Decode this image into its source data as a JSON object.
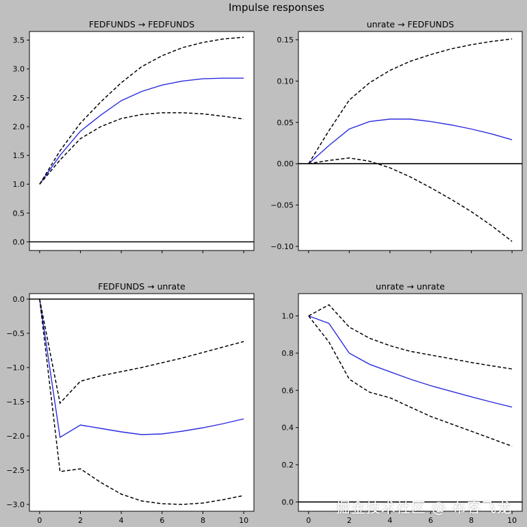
{
  "figure": {
    "title": "Impulse responses",
    "watermark": "掘金技术社区 @ 布客飞龙"
  },
  "colors": {
    "background": "#bfbfbf",
    "axes_face": "#ffffff",
    "irf": "#2b2bde",
    "band": "#000000",
    "zero_line": "#000000"
  },
  "chart_data": [
    {
      "type": "line",
      "title": "FEDFUNDS → FEDFUNDS",
      "x": [
        0,
        1,
        2,
        3,
        4,
        5,
        6,
        7,
        8,
        9,
        10
      ],
      "x_ticks": [],
      "ylim": [
        -0.15,
        3.65
      ],
      "y_ticks": [
        0.0,
        0.5,
        1.0,
        1.5,
        2.0,
        2.5,
        3.0,
        3.5
      ],
      "y_tick_labels": [
        "0.0",
        "0.5",
        "1.0",
        "1.5",
        "2.0",
        "2.5",
        "3.0",
        "3.5"
      ],
      "series": [
        {
          "name": "irf",
          "style": "solid",
          "values": [
            1.0,
            1.5,
            1.92,
            2.2,
            2.45,
            2.61,
            2.72,
            2.79,
            2.83,
            2.84,
            2.84
          ]
        },
        {
          "name": "upper",
          "style": "dashed",
          "values": [
            1.0,
            1.58,
            2.06,
            2.43,
            2.76,
            3.04,
            3.23,
            3.37,
            3.46,
            3.52,
            3.55
          ]
        },
        {
          "name": "lower",
          "style": "dashed",
          "values": [
            1.0,
            1.42,
            1.79,
            2.0,
            2.14,
            2.21,
            2.24,
            2.24,
            2.22,
            2.18,
            2.13
          ]
        }
      ],
      "zero_line": 0
    },
    {
      "type": "line",
      "title": "unrate → FEDFUNDS",
      "x": [
        0,
        1,
        2,
        3,
        4,
        5,
        6,
        7,
        8,
        9,
        10
      ],
      "x_ticks": [],
      "ylim": [
        -0.105,
        0.16
      ],
      "y_ticks": [
        -0.1,
        -0.05,
        0.0,
        0.05,
        0.1,
        0.15
      ],
      "y_tick_labels": [
        "−0.10",
        "−0.05",
        "0.00",
        "0.05",
        "0.10",
        "0.15"
      ],
      "series": [
        {
          "name": "irf",
          "style": "solid",
          "values": [
            0.0,
            0.022,
            0.042,
            0.051,
            0.054,
            0.054,
            0.051,
            0.047,
            0.042,
            0.036,
            0.029
          ]
        },
        {
          "name": "upper",
          "style": "dashed",
          "values": [
            0.0,
            0.04,
            0.077,
            0.098,
            0.113,
            0.124,
            0.132,
            0.139,
            0.144,
            0.148,
            0.151
          ]
        },
        {
          "name": "lower",
          "style": "dashed",
          "values": [
            0.0,
            0.004,
            0.007,
            0.003,
            -0.005,
            -0.016,
            -0.029,
            -0.043,
            -0.058,
            -0.075,
            -0.094
          ]
        }
      ],
      "zero_line": 0
    },
    {
      "type": "line",
      "title": "FEDFUNDS → unrate",
      "x": [
        0,
        1,
        2,
        3,
        4,
        5,
        6,
        7,
        8,
        9,
        10
      ],
      "x_ticks": [
        0,
        2,
        4,
        6,
        8,
        10
      ],
      "x_tick_labels": [
        "0",
        "2",
        "4",
        "6",
        "8",
        "10"
      ],
      "ylim": [
        -3.1,
        0.08
      ],
      "y_ticks": [
        0.0,
        -0.5,
        -1.0,
        -1.5,
        -2.0,
        -2.5,
        -3.0
      ],
      "y_tick_labels": [
        "0.0",
        "−0.5",
        "−1.0",
        "−1.5",
        "−2.0",
        "−2.5",
        "−3.0"
      ],
      "series": [
        {
          "name": "irf",
          "style": "solid",
          "values": [
            0.0,
            -2.02,
            -1.84,
            -1.89,
            -1.94,
            -1.98,
            -1.97,
            -1.93,
            -1.88,
            -1.82,
            -1.75
          ]
        },
        {
          "name": "upper",
          "style": "dashed",
          "values": [
            0.0,
            -1.52,
            -1.2,
            -1.12,
            -1.06,
            -1.0,
            -0.93,
            -0.86,
            -0.78,
            -0.7,
            -0.62
          ]
        },
        {
          "name": "lower",
          "style": "dashed",
          "values": [
            0.0,
            -2.52,
            -2.48,
            -2.68,
            -2.85,
            -2.95,
            -2.99,
            -3.0,
            -2.98,
            -2.93,
            -2.87
          ]
        }
      ],
      "zero_line": 0
    },
    {
      "type": "line",
      "title": "unrate → unrate",
      "x": [
        0,
        1,
        2,
        3,
        4,
        5,
        6,
        7,
        8,
        9,
        10
      ],
      "x_ticks": [
        0,
        2,
        4,
        6,
        8,
        10
      ],
      "x_tick_labels": [
        "0",
        "2",
        "4",
        "6",
        "8",
        "10"
      ],
      "ylim": [
        -0.05,
        1.12
      ],
      "y_ticks": [
        0.0,
        0.2,
        0.4,
        0.6,
        0.8,
        1.0
      ],
      "y_tick_labels": [
        "0.0",
        "0.2",
        "0.4",
        "0.6",
        "0.8",
        "1.0"
      ],
      "series": [
        {
          "name": "irf",
          "style": "solid",
          "values": [
            1.0,
            0.96,
            0.8,
            0.74,
            0.7,
            0.66,
            0.625,
            0.595,
            0.565,
            0.537,
            0.51
          ]
        },
        {
          "name": "upper",
          "style": "dashed",
          "values": [
            1.0,
            1.06,
            0.94,
            0.88,
            0.84,
            0.81,
            0.79,
            0.77,
            0.75,
            0.732,
            0.715
          ]
        },
        {
          "name": "lower",
          "style": "dashed",
          "values": [
            1.0,
            0.86,
            0.66,
            0.59,
            0.56,
            0.51,
            0.46,
            0.42,
            0.38,
            0.34,
            0.3
          ]
        }
      ],
      "zero_line": 0
    }
  ]
}
